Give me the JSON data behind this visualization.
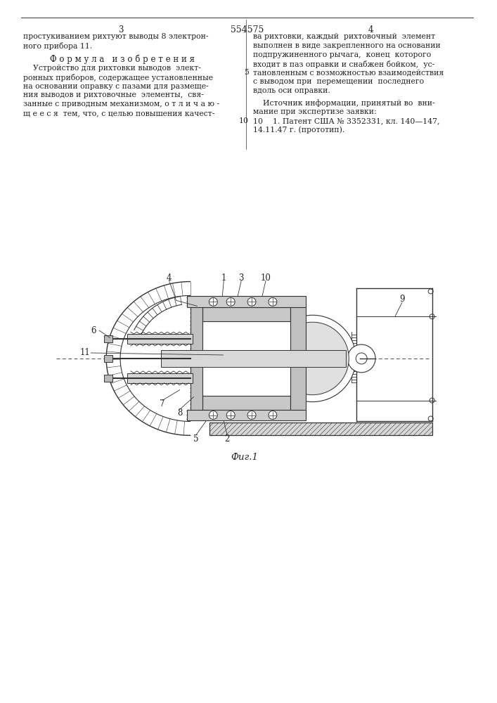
{
  "patent_number": "554575",
  "page_left": "3",
  "page_right": "4",
  "top_line_left": "простукиванием рихтуют выводы 8 электрон-",
  "top_line_left2": "ного прибора 11.",
  "section_title": "Ф о р м у л а   и з о б р е т е н и я",
  "body_left": [
    "    Устройство для рихтовки выводов  элект-",
    "ронных приборов, содержащее установленные",
    "на основании оправку с пазами для размеще-",
    "ния выводов и рихтовочные  элементы,  свя-",
    "занные с приводным механизмом, о т л и ч а ю -",
    "щ е е с я  тем, что, с целью повышения качест-"
  ],
  "body_right_top": [
    "ва рихтовки, каждый  рихтовочный  элемент",
    "выполнен в виде закрепленного на основании",
    "подпружиненного рычага,  конец  которого",
    "входит в паз оправки и снабжен бойком,  ус-",
    "тановленным с возможностью взаимодействия",
    "с выводом при  перемещении  последнего",
    "вдоль оси оправки."
  ],
  "source_lines": [
    "    Источник информации, принятый во  вни-",
    "мание при экспертизе заявки:",
    "10    1. Патент США № 3352331, кл. 140—147,",
    "14.11.47 г. (прототип)."
  ],
  "figure_caption": "Фиг.1",
  "bg_color": "#ffffff",
  "text_color": "#222222",
  "draw_color": "#333333"
}
